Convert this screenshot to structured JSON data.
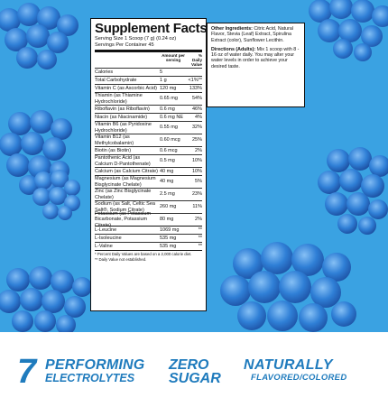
{
  "colors": {
    "background_blue": "#3aa2e2",
    "berry_blue": "#2f7fd6",
    "text_blue": "#1f7bbd"
  },
  "facts": {
    "title": "Supplement Facts",
    "serving_size": "Serving Size 1 Scoop (7 g) (0.24 oz)",
    "servings_per_container": "Servings Per Container 45",
    "header_amount": "Amount per serving",
    "header_dv": "% Daily Value",
    "rows": [
      {
        "name": "Calories",
        "amount": "5",
        "dv": ""
      },
      {
        "name": "Total Carbohydrate",
        "amount": "1 g",
        "dv": "<1%**"
      },
      {
        "name": "Vitamin C (as Ascorbic Acid)",
        "amount": "120 mg",
        "dv": "133%"
      },
      {
        "name": "Thiamin (as Thiamine Hydrochloride)",
        "amount": "0.65 mg",
        "dv": "54%"
      },
      {
        "name": "Riboflavin (as Riboflavin)",
        "amount": "0.6 mg",
        "dv": "46%"
      },
      {
        "name": "Niacin (as Niacinamide)",
        "amount": "0.6 mg NE",
        "dv": "4%"
      },
      {
        "name": "Vitamin B6 (as Pyridoxine Hydrochloride)",
        "amount": "0.55 mg",
        "dv": "32%"
      },
      {
        "name": "Vitamin B12 (as Methylcobalamin)",
        "amount": "0.60 mcg",
        "dv": "25%"
      },
      {
        "name": "Biotin (as Biotin)",
        "amount": "0.6 mcg",
        "dv": "2%"
      },
      {
        "name": "Pantothenic Acid (as Calcium D-Pantothenate)",
        "amount": "0.5 mg",
        "dv": "10%"
      },
      {
        "name": "Calcium (as Calcium Citrate)",
        "amount": "40 mg",
        "dv": "10%"
      },
      {
        "name": "Magnesium (as Magnesium Bisglycinate Chelate)",
        "amount": "40 mg",
        "dv": "5%"
      },
      {
        "name": "Zinc (as Zinc Bisglycinate Chelate)",
        "amount": "2.5 mg",
        "dv": "23%"
      },
      {
        "name": "Sodium (as Salt, Celtic Sea Salt®, Sodium Citrate)",
        "amount": "260 mg",
        "dv": "11%"
      },
      {
        "name": "Potassium (as Potassium Bicarbonate, Potassium Citrate)",
        "amount": "80 mg",
        "dv": "2%"
      },
      {
        "name": "L-Leucine",
        "amount": "1069 mg",
        "dv": "**"
      },
      {
        "name": "L-Isoleucine",
        "amount": "535 mg",
        "dv": "**"
      },
      {
        "name": "L-Valine",
        "amount": "535 mg",
        "dv": "**"
      }
    ],
    "footnote_1": "* Percent Daily Values are based on a 2,000 calorie diet.",
    "footnote_2": "** Daily Value not established."
  },
  "ingredients": {
    "other_label": "Other Ingredients:",
    "other_text": "Citric Acid, Natural Flavor, Stevia (Leaf) Extract, Spirulina Extract (color), Sunflower Lecithin.",
    "directions_label": "Directions (Adults):",
    "directions_text": "Mix 1 scoop with 8 - 16 oz of water daily. You may alter your water levels in order to achieve your desired taste."
  },
  "features": {
    "electrolytes_number": "7",
    "electrolytes_line1": "PERFORMING",
    "electrolytes_line2": "ELECTROLYTES",
    "sugar_line1": "ZERO",
    "sugar_line2": "SUGAR",
    "natural_line1": "NATURALLY",
    "natural_line2": "FLAVORED/COLORED"
  }
}
